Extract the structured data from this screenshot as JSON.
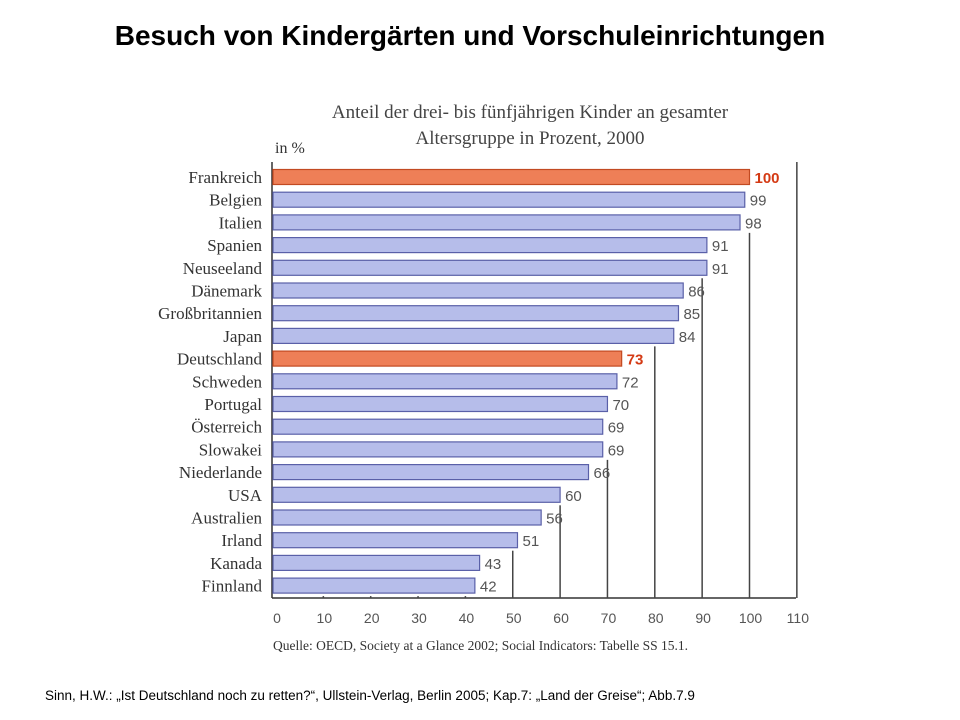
{
  "slide": {
    "title": "Besuch von Kindergärten und Vorschuleinrichtungen",
    "citation": "Sinn, H.W.: „Ist Deutschland noch zu retten?“, Ullstein-Verlag, Berlin 2005; Kap.7: „Land der Greise“; Abb.7.9"
  },
  "chart_data": {
    "type": "bar",
    "orientation": "horizontal",
    "subtitle_line1": "Anteil der drei- bis fünfjährigen Kinder an gesamter",
    "subtitle_line2": "Altersgruppe in Prozent, 2000",
    "unit_label": "in %",
    "source": "Quelle: OECD, Society at a Glance 2002; Social Indicators: Tabelle SS 15.1.",
    "categories": [
      "Frankreich",
      "Belgien",
      "Italien",
      "Spanien",
      "Neuseeland",
      "Dänemark",
      "Großbritannien",
      "Japan",
      "Deutschland",
      "Schweden",
      "Portugal",
      "Österreich",
      "Slowakei",
      "Niederlande",
      "USA",
      "Australien",
      "Irland",
      "Kanada",
      "Finnland"
    ],
    "values": [
      100,
      99,
      98,
      91,
      91,
      86,
      85,
      84,
      73,
      72,
      70,
      69,
      69,
      66,
      60,
      56,
      51,
      43,
      42
    ],
    "highlighted": [
      "Frankreich",
      "Deutschland"
    ],
    "xlim": [
      0,
      110
    ],
    "x_ticks": [
      0,
      10,
      20,
      30,
      40,
      50,
      60,
      70,
      80,
      90,
      100,
      110
    ],
    "grid": "vertical lines below bars",
    "colors": {
      "bar": "#b6bdea",
      "bar_stroke": "#5a60a8",
      "highlight": "#ee7f57",
      "highlight_stroke": "#c24a22",
      "highlight_label": "#d43a14",
      "label": "#555555"
    }
  }
}
